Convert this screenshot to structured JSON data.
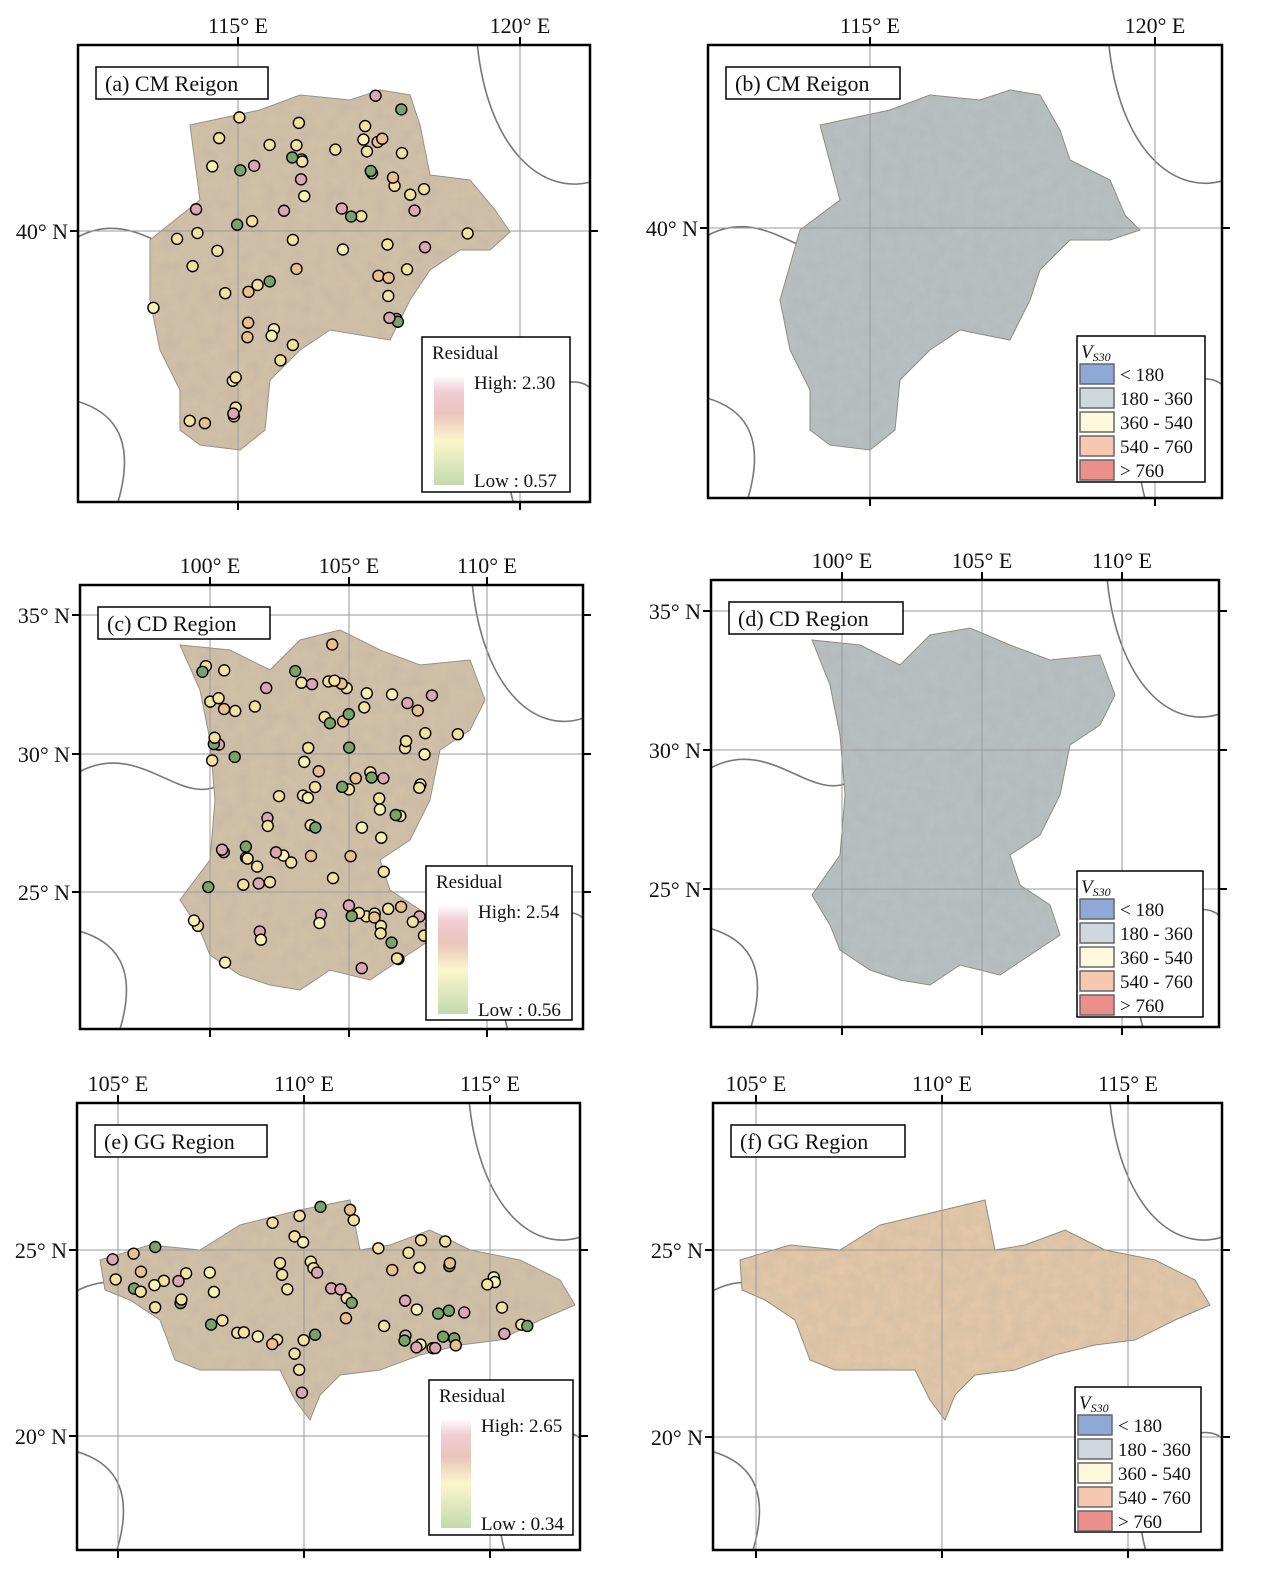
{
  "panels": [
    {
      "id": "a",
      "title": "(a) CM Reigon",
      "type": "residual",
      "lon_labels": [
        "115° E",
        "120° E"
      ],
      "lat_labels": [
        "40° N"
      ],
      "legend": {
        "title": "Residual",
        "high": "High: 2.30",
        "low": "Low : 0.57"
      }
    },
    {
      "id": "b",
      "title": "(b) CM Reigon",
      "type": "vs30",
      "lon_labels": [
        "115° E",
        "120° E"
      ],
      "lat_labels": [
        "40° N"
      ]
    },
    {
      "id": "c",
      "title": "(c) CD Region",
      "type": "residual",
      "lon_labels": [
        "100° E",
        "105° E",
        "110° E"
      ],
      "lat_labels": [
        "35° N",
        "30° N",
        "25° N"
      ],
      "legend": {
        "title": "Residual",
        "high": "High: 2.54",
        "low": "Low : 0.56"
      }
    },
    {
      "id": "d",
      "title": "(d) CD Region",
      "type": "vs30",
      "lon_labels": [
        "100° E",
        "105° E",
        "110° E"
      ],
      "lat_labels": [
        "35° N",
        "30° N",
        "25° N"
      ]
    },
    {
      "id": "e",
      "title": "(e) GG Region",
      "type": "residual",
      "lon_labels": [
        "105° E",
        "110° E",
        "115° E"
      ],
      "lat_labels": [
        "25° N",
        "20° N"
      ],
      "legend": {
        "title": "Residual",
        "high": "High: 2.65",
        "low": "Low : 0.34"
      }
    },
    {
      "id": "f",
      "title": "(f) GG Region",
      "type": "vs30",
      "lon_labels": [
        "105° E",
        "110° E",
        "115° E"
      ],
      "lat_labels": [
        "25° N",
        "20° N"
      ]
    }
  ],
  "vs30_legend": {
    "title_main": "V",
    "title_sub": "S30",
    "classes": [
      {
        "label": "< 180",
        "color": "#8ea9d6"
      },
      {
        "label": "180 - 360",
        "color": "#cfd8df"
      },
      {
        "label": "360 - 540",
        "color": "#fbf8dc"
      },
      {
        "label": "540 - 760",
        "color": "#f6c8b0"
      },
      {
        "label": "> 760",
        "color": "#ea8f8a"
      }
    ]
  },
  "residual_ramp": [
    "#ffffff",
    "#f0c8d0",
    "#f4dcc0",
    "#fbf6c8",
    "#c7dcaf"
  ]
}
